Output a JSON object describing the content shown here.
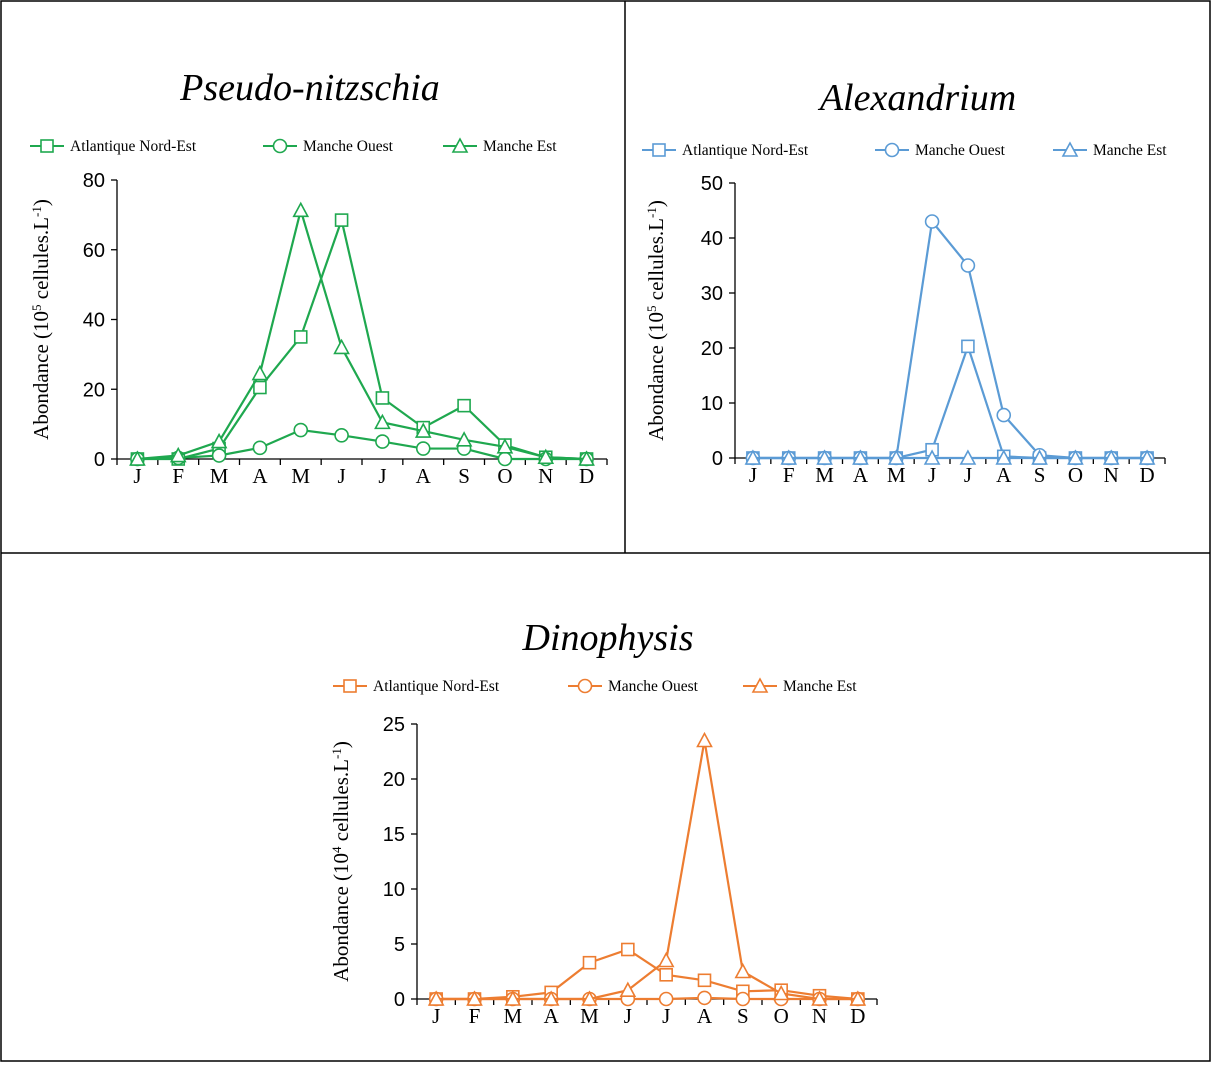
{
  "chart_data": [
    {
      "type": "line",
      "title": "Pseudo-nitzschia",
      "color": "#1fa84f",
      "ylabel": {
        "prefix": "Abondance (10",
        "exp": "5",
        "mid": " cellules.L",
        "sup2": "-1",
        "suffix": ")"
      },
      "ylim": [
        0,
        80
      ],
      "yticks": [
        0,
        20,
        40,
        60,
        80
      ],
      "categories": [
        "J",
        "F",
        "M",
        "A",
        "M",
        "J",
        "J",
        "A",
        "S",
        "O",
        "N",
        "D"
      ],
      "legend_position": "top",
      "series": [
        {
          "name": "Atlantique Nord-Est",
          "marker": "square",
          "values": [
            0,
            0,
            3,
            20.5,
            35,
            68.5,
            17.5,
            9,
            15.3,
            4,
            0.5,
            0
          ]
        },
        {
          "name": "Manche Ouest",
          "marker": "circle",
          "values": [
            0,
            0.3,
            1,
            3.2,
            8.3,
            6.8,
            5,
            3,
            3,
            0,
            0,
            0
          ]
        },
        {
          "name": "Manche Est",
          "marker": "triangle",
          "values": [
            0,
            1,
            5,
            24.5,
            71.3,
            32,
            10.5,
            8,
            5.5,
            3.5,
            0.5,
            0
          ]
        }
      ]
    },
    {
      "type": "line",
      "title": "Alexandrium",
      "color": "#5b9bd5",
      "ylabel": {
        "prefix": "Abondance (10",
        "exp": "5",
        "mid": " cellules.L",
        "sup2": "-1",
        "suffix": ")"
      },
      "ylim": [
        0,
        50
      ],
      "yticks": [
        0,
        10,
        20,
        30,
        40,
        50
      ],
      "categories": [
        "J",
        "F",
        "M",
        "A",
        "M",
        "J",
        "J",
        "A",
        "S",
        "O",
        "N",
        "D"
      ],
      "legend_position": "top",
      "series": [
        {
          "name": "Atlantique Nord-Est",
          "marker": "square",
          "values": [
            0,
            0,
            0,
            0,
            0,
            1.5,
            20.3,
            0.3,
            0,
            0,
            0,
            0
          ]
        },
        {
          "name": "Manche Ouest",
          "marker": "circle",
          "values": [
            0,
            0,
            0,
            0,
            0,
            43,
            35,
            7.8,
            0.5,
            0,
            0,
            0
          ]
        },
        {
          "name": "Manche Est",
          "marker": "triangle",
          "values": [
            0,
            0,
            0,
            0,
            0,
            0,
            0,
            0,
            0,
            0,
            0,
            0
          ]
        }
      ]
    },
    {
      "type": "line",
      "title": "Dinophysis",
      "color": "#ed7d31",
      "ylabel": {
        "prefix": "Abondance (10",
        "exp": "4",
        "mid": " cellules.L",
        "sup2": "-1",
        "suffix": ")"
      },
      "ylim": [
        0,
        25
      ],
      "yticks": [
        0,
        5,
        10,
        15,
        20,
        25
      ],
      "categories": [
        "J",
        "F",
        "M",
        "A",
        "M",
        "J",
        "J",
        "A",
        "S",
        "O",
        "N",
        "D"
      ],
      "legend_position": "top",
      "series": [
        {
          "name": "Atlantique Nord-Est",
          "marker": "square",
          "values": [
            0,
            0,
            0.2,
            0.6,
            3.3,
            4.5,
            2.2,
            1.7,
            0.7,
            0.8,
            0.3,
            0
          ]
        },
        {
          "name": "Manche Ouest",
          "marker": "circle",
          "values": [
            0,
            0,
            0,
            0,
            0,
            0,
            0,
            0.1,
            0,
            0,
            0,
            0
          ]
        },
        {
          "name": "Manche Est",
          "marker": "triangle",
          "values": [
            0,
            0,
            0,
            0,
            0,
            0.8,
            3.5,
            23.5,
            2.5,
            0.5,
            0,
            0
          ]
        }
      ]
    }
  ]
}
